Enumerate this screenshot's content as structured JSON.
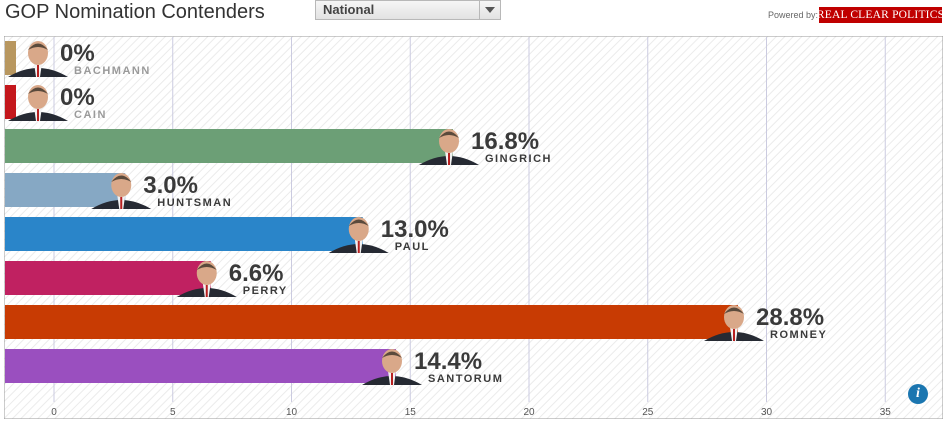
{
  "header": {
    "title": "GOP Nomination Contenders",
    "region_select": {
      "value": "National"
    },
    "powered_by": "Powered by:",
    "logo_text": "REAL CLEAR POLITICS"
  },
  "chart_data": {
    "type": "bar",
    "orientation": "horizontal",
    "categories": [
      "BACHMANN",
      "CAIN",
      "GINGRICH",
      "HUNTSMAN",
      "PAUL",
      "PERRY",
      "ROMNEY",
      "SANTORUM"
    ],
    "values": [
      0,
      0,
      16.8,
      3.0,
      13.0,
      6.6,
      28.8,
      14.4
    ],
    "value_labels": [
      "0%",
      "0%",
      "16.8%",
      "3.0%",
      "13.0%",
      "6.6%",
      "28.8%",
      "14.4%"
    ],
    "colors": [
      "#b8975f",
      "#c4171c",
      "#6c9f76",
      "#86a8c4",
      "#2a85c9",
      "#c02161",
      "#c83b03",
      "#9a4fbf"
    ],
    "xlim": [
      -2,
      37
    ],
    "xticks": [
      0,
      5,
      10,
      15,
      20,
      25,
      30,
      35
    ],
    "grid": true
  }
}
